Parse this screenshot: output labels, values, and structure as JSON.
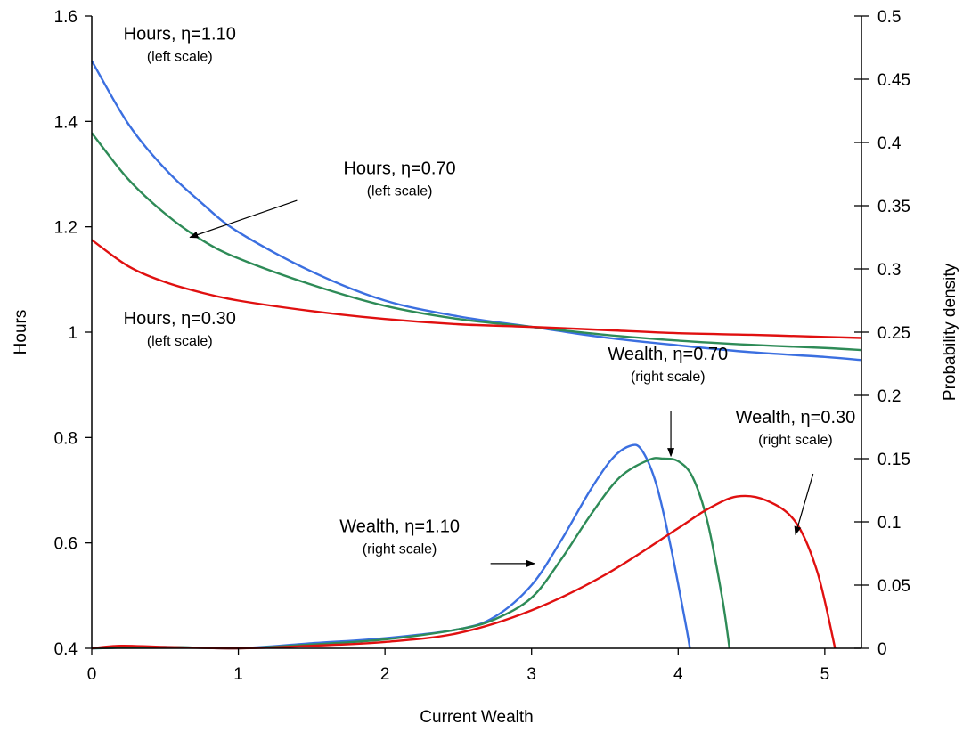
{
  "chart_data": {
    "type": "line",
    "title": "",
    "xlabel": "Current Wealth",
    "ylabel_left": "Hours",
    "ylabel_right": "Probability density",
    "xlim": [
      0,
      5.25
    ],
    "ylim_left": [
      0.4,
      1.6
    ],
    "ylim_right": [
      0,
      0.5
    ],
    "x_ticks": [
      "0",
      "1",
      "2",
      "3",
      "4",
      "5"
    ],
    "y_left_ticks": [
      "0.4",
      "0.6",
      "0.8",
      "1",
      "1.2",
      "1.4",
      "1.6"
    ],
    "y_right_ticks": [
      "0",
      "0.05",
      "0.1",
      "0.15",
      "0.2",
      "0.25",
      "0.3",
      "0.35",
      "0.4",
      "0.45",
      "0.5"
    ],
    "grid": false,
    "colors": {
      "eta_110": "#3B6FE0",
      "eta_070": "#2E8B57",
      "eta_030": "#E01010"
    },
    "series": [
      {
        "name": "Hours, η=1.10",
        "axis": "left",
        "color_key": "eta_110",
        "points": [
          [
            0,
            1.515
          ],
          [
            0.25,
            1.395
          ],
          [
            0.5,
            1.31
          ],
          [
            0.75,
            1.245
          ],
          [
            1,
            1.19
          ],
          [
            1.5,
            1.115
          ],
          [
            2,
            1.06
          ],
          [
            2.5,
            1.03
          ],
          [
            3,
            1.01
          ],
          [
            3.5,
            0.99
          ],
          [
            4,
            0.975
          ],
          [
            4.5,
            0.962
          ],
          [
            5,
            0.953
          ],
          [
            5.25,
            0.947
          ]
        ]
      },
      {
        "name": "Hours, η=0.70",
        "axis": "left",
        "color_key": "eta_070",
        "points": [
          [
            0,
            1.378
          ],
          [
            0.25,
            1.29
          ],
          [
            0.5,
            1.225
          ],
          [
            0.75,
            1.175
          ],
          [
            1,
            1.14
          ],
          [
            1.5,
            1.09
          ],
          [
            2,
            1.05
          ],
          [
            2.5,
            1.025
          ],
          [
            3,
            1.01
          ],
          [
            3.5,
            0.995
          ],
          [
            4,
            0.984
          ],
          [
            4.5,
            0.976
          ],
          [
            5,
            0.97
          ],
          [
            5.25,
            0.966
          ]
        ]
      },
      {
        "name": "Hours, η=0.30",
        "axis": "left",
        "color_key": "eta_030",
        "points": [
          [
            0,
            1.175
          ],
          [
            0.25,
            1.125
          ],
          [
            0.5,
            1.095
          ],
          [
            0.75,
            1.075
          ],
          [
            1,
            1.06
          ],
          [
            1.5,
            1.04
          ],
          [
            2,
            1.025
          ],
          [
            2.5,
            1.015
          ],
          [
            3,
            1.01
          ],
          [
            3.5,
            1.004
          ],
          [
            4,
            0.998
          ],
          [
            4.5,
            0.995
          ],
          [
            5,
            0.991
          ],
          [
            5.25,
            0.989
          ]
        ]
      },
      {
        "name": "Wealth, η=1.10",
        "axis": "right",
        "color_key": "eta_110",
        "points": [
          [
            0,
            0
          ],
          [
            0.5,
            0.001
          ],
          [
            1,
            0
          ],
          [
            1.5,
            0.004
          ],
          [
            2,
            0.008
          ],
          [
            2.5,
            0.015
          ],
          [
            2.75,
            0.025
          ],
          [
            3,
            0.05
          ],
          [
            3.2,
            0.085
          ],
          [
            3.4,
            0.125
          ],
          [
            3.55,
            0.15
          ],
          [
            3.67,
            0.16
          ],
          [
            3.75,
            0.157
          ],
          [
            3.85,
            0.13
          ],
          [
            3.95,
            0.08
          ],
          [
            4.05,
            0.02
          ],
          [
            4.08,
            0
          ]
        ]
      },
      {
        "name": "Wealth, η=0.70",
        "axis": "right",
        "color_key": "eta_070",
        "points": [
          [
            0,
            0
          ],
          [
            0.5,
            0.001
          ],
          [
            1,
            0
          ],
          [
            1.5,
            0.003
          ],
          [
            2,
            0.007
          ],
          [
            2.5,
            0.015
          ],
          [
            2.75,
            0.023
          ],
          [
            3,
            0.04
          ],
          [
            3.2,
            0.07
          ],
          [
            3.4,
            0.105
          ],
          [
            3.6,
            0.135
          ],
          [
            3.8,
            0.149
          ],
          [
            3.9,
            0.15
          ],
          [
            4,
            0.148
          ],
          [
            4.1,
            0.135
          ],
          [
            4.2,
            0.1
          ],
          [
            4.3,
            0.04
          ],
          [
            4.35,
            0
          ]
        ]
      },
      {
        "name": "Wealth, η=0.30",
        "axis": "right",
        "color_key": "eta_030",
        "points": [
          [
            0,
            0
          ],
          [
            0.2,
            0.002
          ],
          [
            0.5,
            0.001
          ],
          [
            1,
            0
          ],
          [
            1.5,
            0.002
          ],
          [
            2,
            0.005
          ],
          [
            2.5,
            0.012
          ],
          [
            3,
            0.03
          ],
          [
            3.5,
            0.058
          ],
          [
            4,
            0.095
          ],
          [
            4.2,
            0.11
          ],
          [
            4.4,
            0.12
          ],
          [
            4.6,
            0.117
          ],
          [
            4.8,
            0.1
          ],
          [
            4.95,
            0.06
          ],
          [
            5.07,
            0
          ]
        ]
      }
    ],
    "annotations": [
      {
        "title": "Hours, η=1.10",
        "sub": "(left scale)",
        "x": 0.6,
        "y": 1.555,
        "axis": "left",
        "anchor": "middle"
      },
      {
        "title": "Hours, η=0.70",
        "sub": "(left scale)",
        "x": 2.1,
        "y": 1.3,
        "axis": "left",
        "anchor": "middle",
        "arrow_from": [
          1.4,
          1.25
        ],
        "arrow_to": [
          0.67,
          1.18
        ]
      },
      {
        "title": "Hours, η=0.30",
        "sub": "(left scale)",
        "x": 0.6,
        "y": 1.015,
        "axis": "left",
        "anchor": "middle"
      },
      {
        "title": "Wealth, η=0.70",
        "sub": "(right scale)",
        "x": 3.93,
        "y": 0.228,
        "axis": "right",
        "anchor": "middle",
        "arrow_from": [
          3.95,
          0.188
        ],
        "arrow_to": [
          3.95,
          0.152
        ]
      },
      {
        "title": "Wealth, η=0.30",
        "sub": "(right scale)",
        "x": 4.8,
        "y": 0.178,
        "axis": "right",
        "anchor": "middle",
        "arrow_from": [
          4.92,
          0.138
        ],
        "arrow_to": [
          4.8,
          0.09
        ]
      },
      {
        "title": "Wealth, η=1.10",
        "sub": "(right scale)",
        "x": 2.1,
        "y": 0.092,
        "axis": "right",
        "anchor": "middle",
        "arrow_from": [
          2.72,
          0.067
        ],
        "arrow_to": [
          3.02,
          0.067
        ]
      }
    ]
  }
}
